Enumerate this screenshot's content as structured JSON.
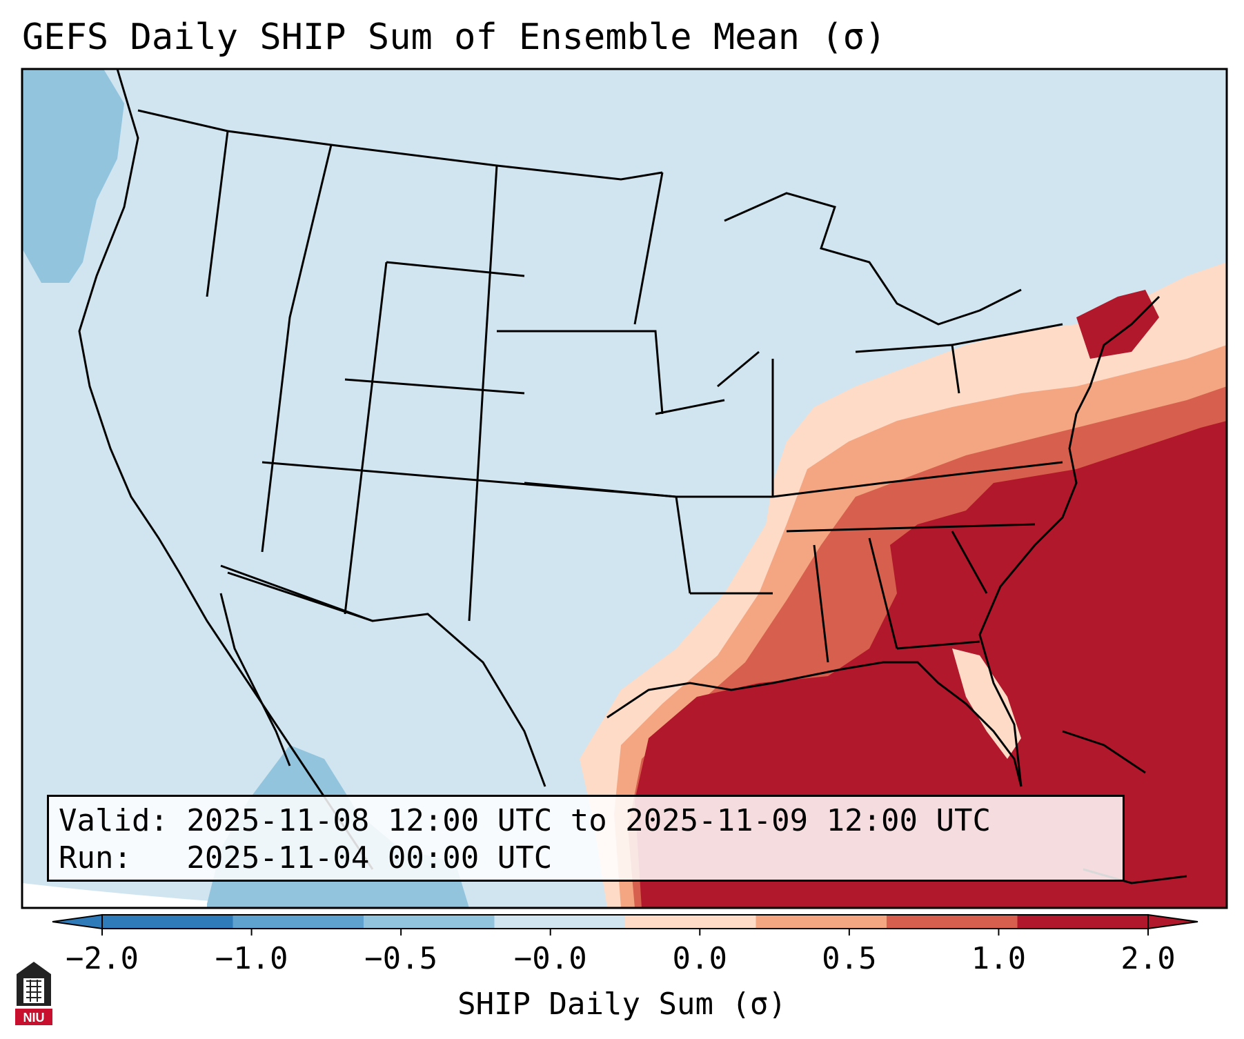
{
  "title": "GEFS Daily SHIP Sum of Ensemble Mean (σ)",
  "valid_line": "Valid: 2025-11-08 12:00 UTC to 2025-11-09 12:00 UTC",
  "run_line": "Run:   2025-11-04 00:00 UTC",
  "colorbar": {
    "label": "SHIP Daily Sum (σ)",
    "ticks": [
      "−2.0",
      "−1.0",
      "−0.5",
      "−0.0",
      "0.0",
      "0.5",
      "1.0",
      "2.0"
    ],
    "colors": [
      "#2f7bb9",
      "#5fa2cf",
      "#92c4de",
      "#d1e5f0",
      "#fddbc7",
      "#f4a582",
      "#d6604d",
      "#b2182b"
    ],
    "extend": "both"
  },
  "logo": {
    "text": "NIU",
    "color": "#c8102e"
  },
  "colors": {
    "ocean_light": "#d1e5f0",
    "land_light": "#d1e5f0",
    "pacific_mid": "#92c4de",
    "outline": "#000000"
  }
}
